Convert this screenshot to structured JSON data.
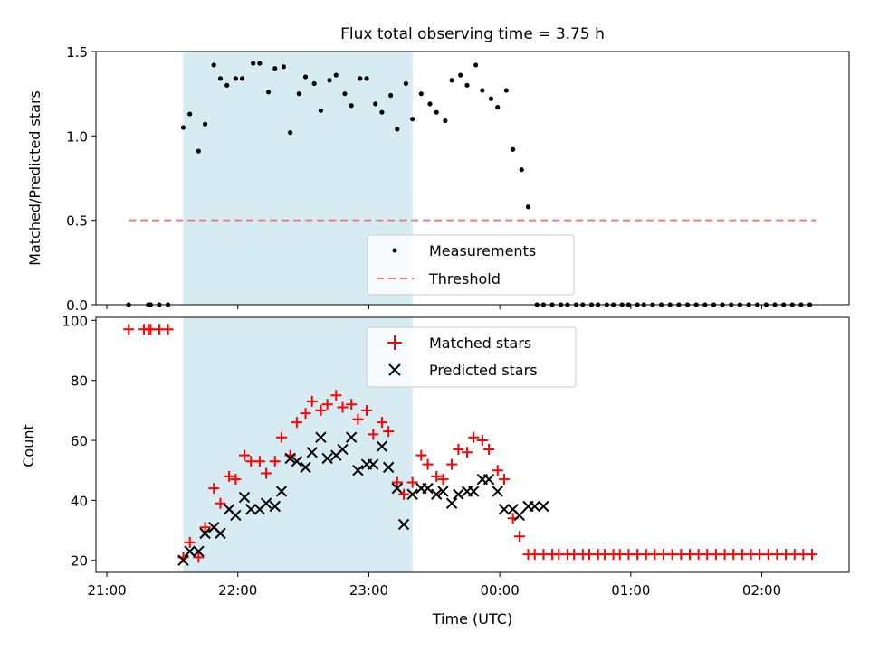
{
  "chart_data": [
    {
      "type": "scatter",
      "title": "Flux total observing time = 3.75 h",
      "xlabel": "",
      "ylabel": "Matched/Predicted stars",
      "xlim": [
        "20:55",
        "02:40"
      ],
      "ylim": [
        0,
        1.5
      ],
      "yticks": [
        "0.0",
        "0.5",
        "1.0",
        "1.5"
      ],
      "shaded_interval": [
        "21:35",
        "23:20"
      ],
      "legend": {
        "position": "lower-center",
        "entries": [
          "Measurements",
          "Threshold"
        ]
      },
      "threshold": {
        "name": "Threshold",
        "y": 0.5,
        "x_start": "21:10",
        "x_end": "02:25",
        "color": "#f47a7a"
      },
      "series": [
        {
          "name": "Measurements",
          "color": "#000000",
          "x": [
            "21:10",
            "21:19",
            "21:20",
            "21:24",
            "21:28",
            "21:35",
            "21:38",
            "21:42",
            "21:45",
            "21:49",
            "21:52",
            "21:55",
            "21:59",
            "22:02",
            "22:07",
            "22:10",
            "22:14",
            "22:17",
            "22:21",
            "22:24",
            "22:28",
            "22:31",
            "22:35",
            "22:38",
            "22:42",
            "22:45",
            "22:49",
            "22:52",
            "22:56",
            "22:59",
            "23:03",
            "23:06",
            "23:10",
            "23:13",
            "23:17",
            "23:20",
            "23:24",
            "23:28",
            "23:31",
            "23:35",
            "23:38",
            "23:42",
            "23:45",
            "23:49",
            "23:52",
            "23:56",
            "23:59",
            "00:03",
            "00:06",
            "00:10",
            "00:13",
            "00:17",
            "00:20",
            "00:24",
            "00:28",
            "00:31",
            "00:35",
            "00:38",
            "00:42",
            "00:45",
            "00:49",
            "00:52",
            "00:56",
            "00:59",
            "01:03",
            "01:06",
            "01:10",
            "01:14",
            "01:18",
            "01:22",
            "01:26",
            "01:30",
            "01:34",
            "01:38",
            "01:42",
            "01:46",
            "01:50",
            "01:54",
            "01:58",
            "02:02",
            "02:06",
            "02:10",
            "02:14",
            "02:18",
            "02:22"
          ],
          "y": [
            0.0,
            0.0,
            0.0,
            0.0,
            0.0,
            1.05,
            1.13,
            0.91,
            1.07,
            1.42,
            1.34,
            1.3,
            1.34,
            1.34,
            1.43,
            1.43,
            1.26,
            1.4,
            1.41,
            1.02,
            1.25,
            1.35,
            1.31,
            1.15,
            1.33,
            1.36,
            1.25,
            1.18,
            1.34,
            1.34,
            1.19,
            1.14,
            1.24,
            1.04,
            1.31,
            1.1,
            1.25,
            1.19,
            1.14,
            1.09,
            1.33,
            1.36,
            1.3,
            1.42,
            1.27,
            1.22,
            1.17,
            1.27,
            0.92,
            0.8,
            0.58,
            0.0,
            0.0,
            0.0,
            0.0,
            0.0,
            0.0,
            0.0,
            0.0,
            0.0,
            0.0,
            0.0,
            0.0,
            0.0,
            0.0,
            0.0,
            0.0,
            0.0,
            0.0,
            0.0,
            0.0,
            0.0,
            0.0,
            0.0,
            0.0,
            0.0,
            0.0,
            0.0,
            0.0,
            0.0,
            0.0,
            0.0,
            0.0,
            0.0,
            0.0
          ]
        }
      ]
    },
    {
      "type": "scatter",
      "title": "",
      "xlabel": "Time (UTC)",
      "ylabel": "Count",
      "xlim": [
        "20:55",
        "02:40"
      ],
      "ylim": [
        16,
        101
      ],
      "yticks": [
        "20",
        "40",
        "60",
        "80",
        "100"
      ],
      "xticks": [
        "21:00",
        "22:00",
        "23:00",
        "00:00",
        "01:00",
        "02:00"
      ],
      "shaded_interval": [
        "21:35",
        "23:20"
      ],
      "legend": {
        "position": "upper-center",
        "entries": [
          "Matched stars",
          "Predicted stars"
        ]
      },
      "series": [
        {
          "name": "Matched stars",
          "marker": "plus",
          "color": "#ff0000",
          "x": [
            "21:10",
            "21:17",
            "21:19",
            "21:20",
            "21:24",
            "21:28",
            "21:35",
            "21:38",
            "21:42",
            "21:45",
            "21:49",
            "21:52",
            "21:56",
            "21:59",
            "22:03",
            "22:06",
            "22:10",
            "22:13",
            "22:17",
            "22:20",
            "22:24",
            "22:27",
            "22:31",
            "22:34",
            "22:38",
            "22:41",
            "22:45",
            "22:48",
            "22:52",
            "22:55",
            "22:59",
            "23:02",
            "23:06",
            "23:09",
            "23:13",
            "23:16",
            "23:20",
            "23:24",
            "23:27",
            "23:31",
            "23:34",
            "23:38",
            "23:41",
            "23:45",
            "23:48",
            "23:52",
            "23:55",
            "23:59",
            "00:02",
            "00:06",
            "00:09",
            "00:13",
            "00:16",
            "00:20",
            "00:24",
            "00:27",
            "00:31",
            "00:34",
            "00:38",
            "00:41",
            "00:45",
            "00:48",
            "00:52",
            "00:55",
            "00:59",
            "01:03",
            "01:07",
            "01:11",
            "01:15",
            "01:19",
            "01:23",
            "01:27",
            "01:31",
            "01:35",
            "01:39",
            "01:43",
            "01:47",
            "01:51",
            "01:55",
            "01:59",
            "02:03",
            "02:07",
            "02:11",
            "02:15",
            "02:19",
            "02:23"
          ],
          "y": [
            97,
            97,
            97,
            97,
            97,
            97,
            21,
            26,
            21,
            31,
            44,
            39,
            48,
            47,
            55,
            53,
            53,
            49,
            53,
            61,
            55,
            66,
            69,
            73,
            70,
            72,
            75,
            71,
            72,
            67,
            70,
            62,
            66,
            63,
            46,
            42,
            46,
            55,
            52,
            48,
            47,
            52,
            57,
            56,
            61,
            60,
            57,
            50,
            47,
            34,
            28,
            22,
            22,
            22,
            22,
            22,
            22,
            22,
            22,
            22,
            22,
            22,
            22,
            22,
            22,
            22,
            22,
            22,
            22,
            22,
            22,
            22,
            22,
            22,
            22,
            22,
            22,
            22,
            22,
            22,
            22,
            22,
            22,
            22,
            22,
            22
          ]
        },
        {
          "name": "Predicted stars",
          "marker": "x",
          "color": "#000000",
          "x": [
            "21:35",
            "21:38",
            "21:42",
            "21:45",
            "21:49",
            "21:52",
            "21:56",
            "21:59",
            "22:03",
            "22:06",
            "22:10",
            "22:13",
            "22:17",
            "22:20",
            "22:24",
            "22:27",
            "22:31",
            "22:34",
            "22:38",
            "22:41",
            "22:45",
            "22:48",
            "22:52",
            "22:55",
            "22:59",
            "23:02",
            "23:06",
            "23:09",
            "23:13",
            "23:16",
            "23:20",
            "23:24",
            "23:27",
            "23:31",
            "23:34",
            "23:38",
            "23:41",
            "23:45",
            "23:48",
            "23:52",
            "23:55",
            "23:59",
            "00:02",
            "00:06",
            "00:09",
            "00:13",
            "00:16",
            "00:20"
          ],
          "y": [
            20,
            23,
            23,
            29,
            31,
            29,
            37,
            35,
            41,
            37,
            37,
            39,
            38,
            43,
            54,
            53,
            51,
            56,
            61,
            54,
            55,
            57,
            61,
            50,
            52,
            52,
            58,
            51,
            44,
            32,
            42,
            44,
            44,
            42,
            43,
            39,
            42,
            43,
            43,
            47,
            47,
            43,
            37,
            37,
            35,
            38,
            38,
            38
          ]
        }
      ]
    }
  ]
}
